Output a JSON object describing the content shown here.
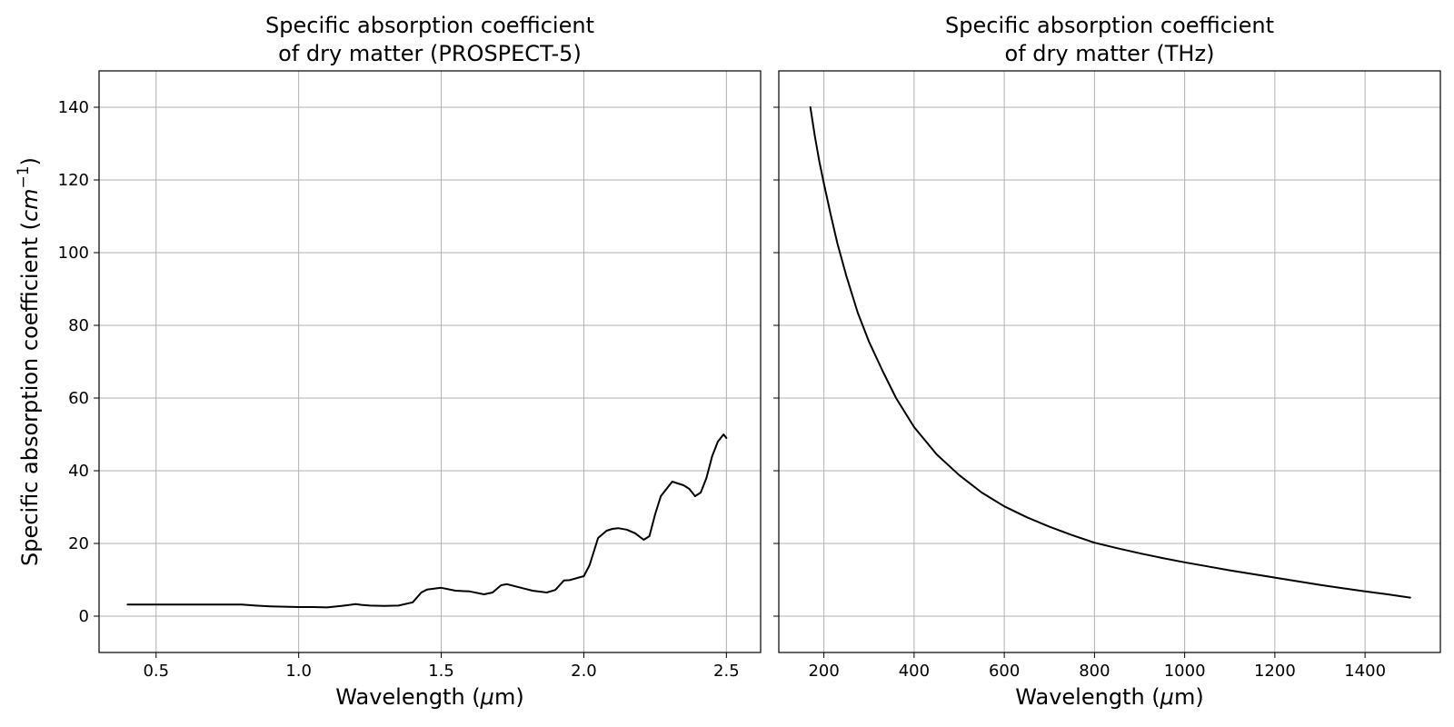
{
  "figure": {
    "ylabel": "Specific absorption coefficient ($cm^{-1}$)"
  },
  "chart_data": [
    {
      "type": "line",
      "title_line1": "Specific absorption coefficient",
      "title_line2": "of dry matter (PROSPECT-5)",
      "xlabel": "Wavelength ($\\mu$m)",
      "ylabel": "Specific absorption coefficient ($cm^{-1}$)",
      "xlim": [
        0.3,
        2.62
      ],
      "ylim": [
        -10,
        150
      ],
      "xticks": [
        0.5,
        1.0,
        1.5,
        2.0,
        2.5
      ],
      "xtick_labels": [
        "0.5",
        "1.0",
        "1.5",
        "2.0",
        "2.5"
      ],
      "yticks": [
        0,
        20,
        40,
        60,
        80,
        100,
        120,
        140
      ],
      "ytick_labels": [
        "0",
        "20",
        "40",
        "60",
        "80",
        "100",
        "120",
        "140"
      ],
      "grid": true,
      "line_color": "#000000",
      "series": [
        {
          "x": [
            0.4,
            0.5,
            0.6,
            0.7,
            0.8,
            0.85,
            0.87,
            0.9,
            0.95,
            1.0,
            1.05,
            1.1,
            1.15,
            1.2,
            1.22,
            1.25,
            1.3,
            1.35,
            1.4,
            1.43,
            1.45,
            1.5,
            1.55,
            1.6,
            1.65,
            1.68,
            1.71,
            1.73,
            1.78,
            1.82,
            1.87,
            1.9,
            1.93,
            1.95,
            2.0,
            2.02,
            2.05,
            2.08,
            2.1,
            2.12,
            2.15,
            2.18,
            2.21,
            2.23,
            2.25,
            2.27,
            2.3,
            2.31,
            2.33,
            2.35,
            2.37,
            2.39,
            2.41,
            2.43,
            2.45,
            2.47,
            2.48,
            2.49,
            2.5
          ],
          "y": [
            3.2,
            3.2,
            3.2,
            3.2,
            3.2,
            2.9,
            2.8,
            2.7,
            2.6,
            2.5,
            2.5,
            2.4,
            2.8,
            3.3,
            3.1,
            2.9,
            2.8,
            2.9,
            3.8,
            6.5,
            7.3,
            7.8,
            7.0,
            6.8,
            6.0,
            6.5,
            8.5,
            8.8,
            7.8,
            7.0,
            6.5,
            7.2,
            9.8,
            9.9,
            11.0,
            14.0,
            21.5,
            23.5,
            24.0,
            24.2,
            23.8,
            22.8,
            21.0,
            22.0,
            28.0,
            33.0,
            36.0,
            37.0,
            36.5,
            36.0,
            35.0,
            33.0,
            34.0,
            38.0,
            44.0,
            48.0,
            49.0,
            50.0,
            49.0
          ]
        }
      ]
    },
    {
      "type": "line",
      "title_line1": "Specific absorption coefficient",
      "title_line2": "of dry matter (THz)",
      "xlabel": "Wavelength ($\\mu$m)",
      "xlim": [
        100,
        1567
      ],
      "ylim": [
        -10,
        150
      ],
      "xticks": [
        200,
        400,
        600,
        800,
        1000,
        1200,
        1400
      ],
      "xtick_labels": [
        "200",
        "400",
        "600",
        "800",
        "1000",
        "1200",
        "1400"
      ],
      "yticks": [
        0,
        20,
        40,
        60,
        80,
        100,
        120,
        140
      ],
      "grid": true,
      "line_color": "#000000",
      "series": [
        {
          "x": [
            170,
            180,
            190,
            200,
            215,
            230,
            250,
            275,
            300,
            330,
            360,
            400,
            450,
            500,
            550,
            600,
            650,
            700,
            750,
            800,
            850,
            900,
            950,
            1000,
            1050,
            1100,
            1150,
            1200,
            1250,
            1300,
            1350,
            1400,
            1450,
            1500
          ],
          "y": [
            140,
            132,
            125,
            119,
            110.5,
            102.5,
            93.5,
            83.5,
            75.5,
            67.5,
            60.0,
            52.0,
            44.5,
            38.8,
            34.0,
            30.2,
            27.2,
            24.6,
            22.3,
            20.2,
            18.7,
            17.3,
            16.0,
            14.8,
            13.7,
            12.6,
            11.6,
            10.6,
            9.6,
            8.6,
            7.7,
            6.8,
            6.0,
            5.1
          ]
        }
      ]
    }
  ]
}
